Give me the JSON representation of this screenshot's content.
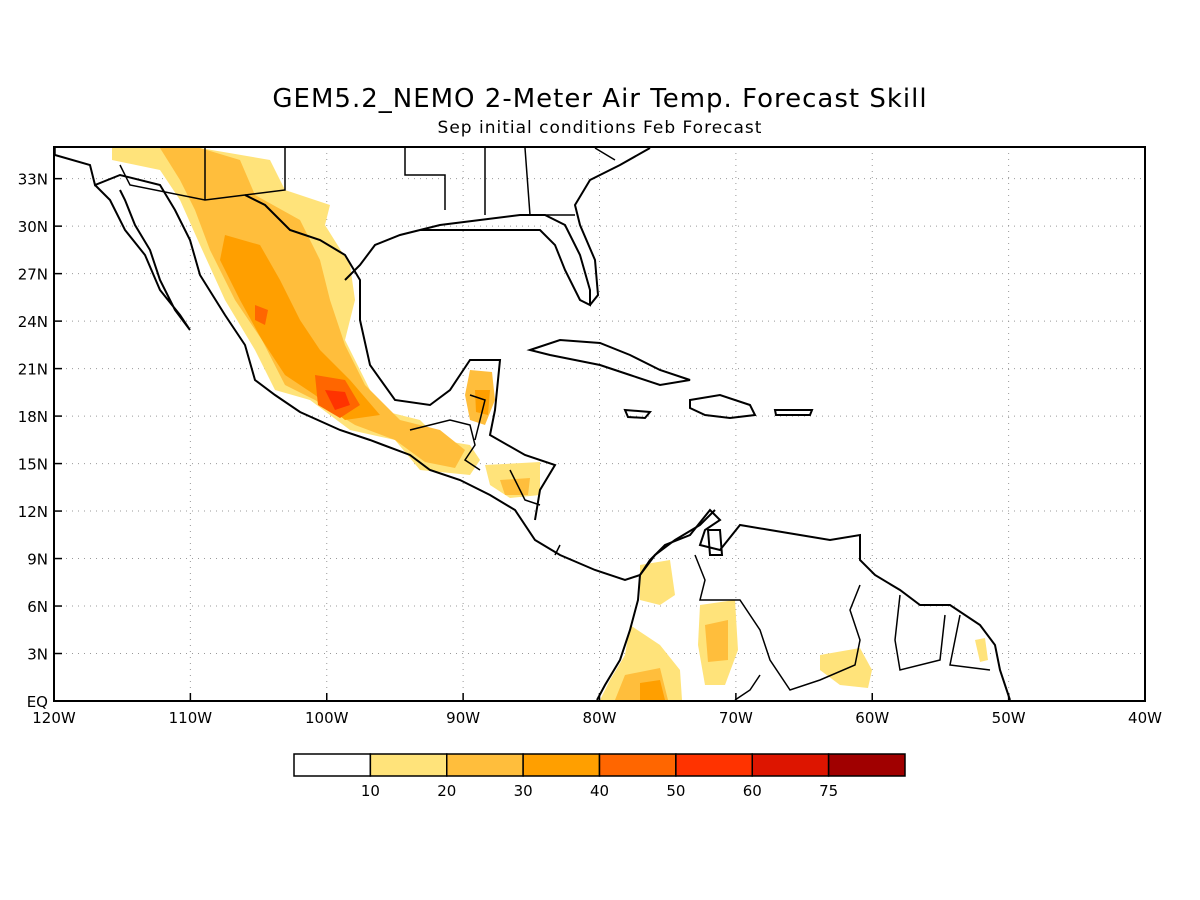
{
  "title": "GEM5.2_NEMO 2-Meter Air Temp. Forecast Skill",
  "subtitle": "Sep initial conditions  Feb Forecast",
  "map": {
    "lon_range": [
      -120,
      -40
    ],
    "lat_range": [
      0,
      35
    ],
    "x_ticks": [
      "120W",
      "110W",
      "100W",
      "90W",
      "80W",
      "70W",
      "60W",
      "50W",
      "40W"
    ],
    "y_ticks": [
      "EQ",
      "3N",
      "6N",
      "9N",
      "12N",
      "15N",
      "18N",
      "21N",
      "24N",
      "27N",
      "30N",
      "33N"
    ],
    "grid": "dotted"
  },
  "legend": {
    "labels": [
      "10",
      "20",
      "30",
      "40",
      "50",
      "60",
      "75"
    ],
    "colors": [
      "#ffffff",
      "#ffe37a",
      "#ffbe3c",
      "#ff9f00",
      "#ff6600",
      "#ff3300",
      "#dd1500",
      "#a00000"
    ]
  }
}
